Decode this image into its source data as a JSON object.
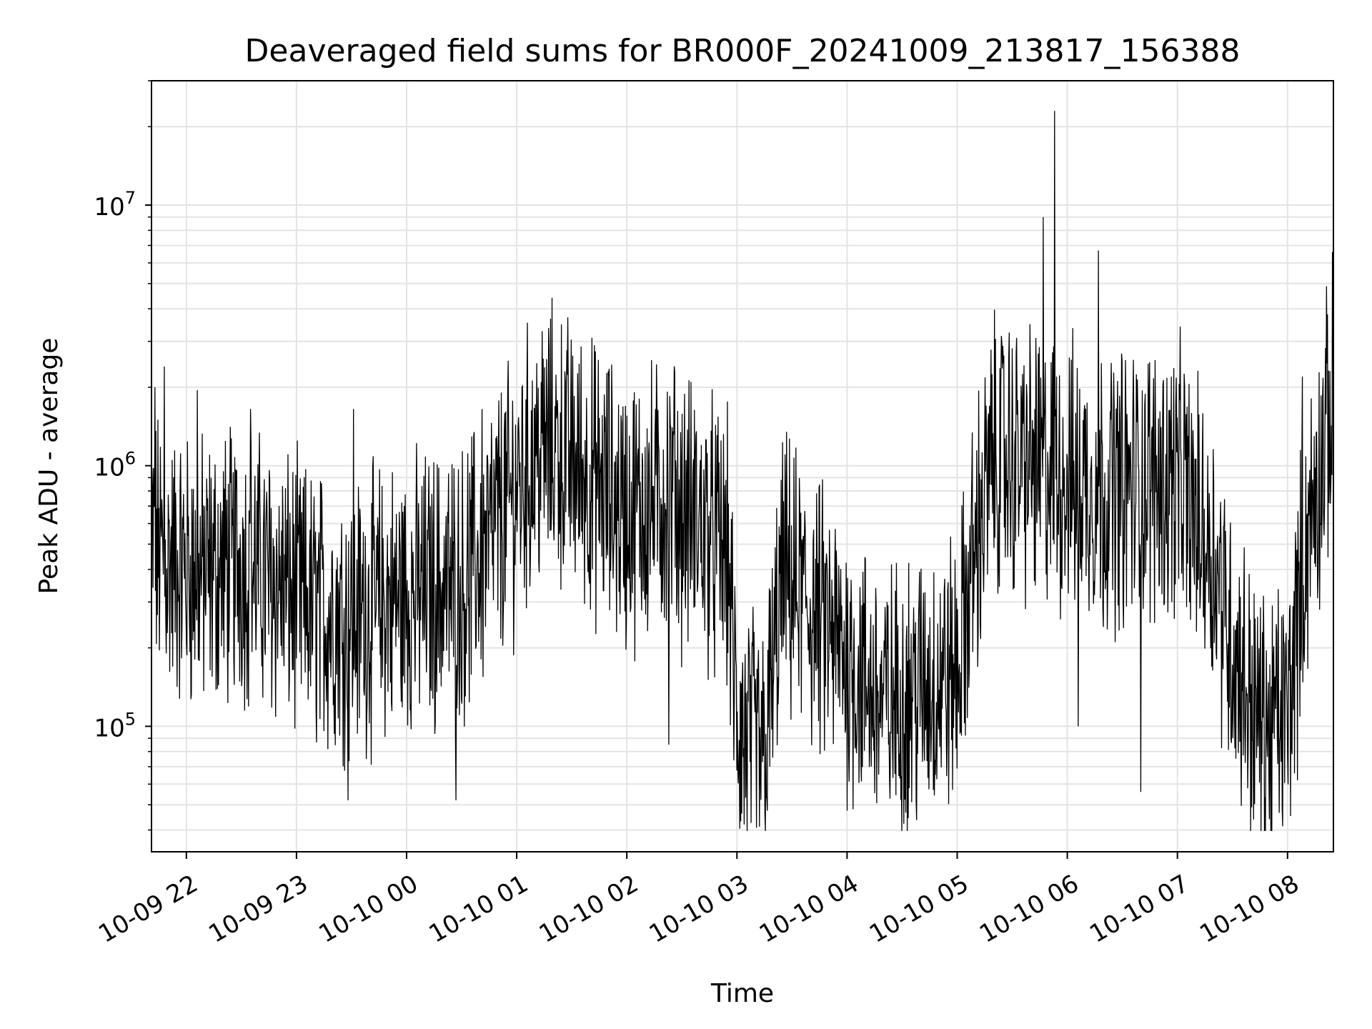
{
  "chart_data": {
    "type": "line",
    "title": "Deaveraged field sums for BR000F_20241009_213817_156388",
    "xlabel": "Time",
    "ylabel": "Peak ADU - average",
    "yscale": "log",
    "ylim": [
      33000,
      30000000
    ],
    "xlim": [
      "2024-10-09 21:41",
      "2024-10-10 08:25"
    ],
    "grid": true,
    "x_ticks": [
      {
        "time": "2024-10-09 22:00",
        "label": "10-09 22"
      },
      {
        "time": "2024-10-09 23:00",
        "label": "10-09 23"
      },
      {
        "time": "2024-10-10 00:00",
        "label": "10-10 00"
      },
      {
        "time": "2024-10-10 01:00",
        "label": "10-10 01"
      },
      {
        "time": "2024-10-10 02:00",
        "label": "10-10 02"
      },
      {
        "time": "2024-10-10 03:00",
        "label": "10-10 03"
      },
      {
        "time": "2024-10-10 04:00",
        "label": "10-10 04"
      },
      {
        "time": "2024-10-10 05:00",
        "label": "10-10 05"
      },
      {
        "time": "2024-10-10 06:00",
        "label": "10-10 06"
      },
      {
        "time": "2024-10-10 07:00",
        "label": "10-10 07"
      },
      {
        "time": "2024-10-10 08:00",
        "label": "10-10 08"
      }
    ],
    "y_ticks": [
      {
        "value": 100000,
        "base": "10",
        "exp": "5"
      },
      {
        "value": 1000000,
        "base": "10",
        "exp": "6"
      },
      {
        "value": 10000000,
        "base": "10",
        "exp": "7"
      }
    ],
    "series": [
      {
        "color": "#000000",
        "trend": [
          [
            "2024-10-09 21:41",
            500000
          ],
          [
            "2024-10-09 21:50",
            420000
          ],
          [
            "2024-10-09 22:10",
            380000
          ],
          [
            "2024-10-09 22:30",
            430000
          ],
          [
            "2024-10-09 22:50",
            350000
          ],
          [
            "2024-10-09 23:10",
            280000
          ],
          [
            "2024-10-09 23:30",
            260000
          ],
          [
            "2024-10-09 23:50",
            300000
          ],
          [
            "2024-10-10 00:10",
            330000
          ],
          [
            "2024-10-10 00:30",
            340000
          ],
          [
            "2024-10-10 00:50",
            600000
          ],
          [
            "2024-10-10 01:10",
            1100000
          ],
          [
            "2024-10-10 01:20",
            1200000
          ],
          [
            "2024-10-10 01:40",
            900000
          ],
          [
            "2024-10-10 02:00",
            650000
          ],
          [
            "2024-10-10 02:20",
            750000
          ],
          [
            "2024-10-10 02:40",
            600000
          ],
          [
            "2024-10-10 02:55",
            450000
          ],
          [
            "2024-10-10 03:00",
            100000
          ],
          [
            "2024-10-10 03:15",
            75000
          ],
          [
            "2024-10-10 03:25",
            380000
          ],
          [
            "2024-10-10 03:45",
            250000
          ],
          [
            "2024-10-10 04:00",
            180000
          ],
          [
            "2024-10-10 04:20",
            120000
          ],
          [
            "2024-10-10 04:40",
            140000
          ],
          [
            "2024-10-10 05:00",
            160000
          ],
          [
            "2024-10-10 05:10",
            500000
          ],
          [
            "2024-10-10 05:20",
            1100000
          ],
          [
            "2024-10-10 05:40",
            1000000
          ],
          [
            "2024-10-10 06:00",
            900000
          ],
          [
            "2024-10-10 06:20",
            800000
          ],
          [
            "2024-10-10 06:40",
            850000
          ],
          [
            "2024-10-10 07:00",
            900000
          ],
          [
            "2024-10-10 07:20",
            450000
          ],
          [
            "2024-10-10 07:30",
            200000
          ],
          [
            "2024-10-10 07:45",
            100000
          ],
          [
            "2024-10-10 08:00",
            110000
          ],
          [
            "2024-10-10 08:10",
            500000
          ],
          [
            "2024-10-10 08:25",
            1800000
          ]
        ],
        "spikes": [
          {
            "time": "2024-10-09 21:43",
            "value": 2000000
          },
          {
            "time": "2024-10-09 21:48",
            "value": 2400000
          },
          {
            "time": "2024-10-09 22:06",
            "value": 1950000
          },
          {
            "time": "2024-10-09 22:35",
            "value": 1650000
          },
          {
            "time": "2024-10-09 23:31",
            "value": 1650000
          },
          {
            "time": "2024-10-09 23:28",
            "value": 52000
          },
          {
            "time": "2024-10-10 00:27",
            "value": 52000
          },
          {
            "time": "2024-10-10 00:41",
            "value": 1650000
          },
          {
            "time": "2024-10-10 01:50",
            "value": 2200000
          },
          {
            "time": "2024-10-10 02:26",
            "value": 2300000
          },
          {
            "time": "2024-10-10 02:23",
            "value": 85000
          },
          {
            "time": "2024-10-10 03:04",
            "value": 42000
          },
          {
            "time": "2024-10-10 05:28",
            "value": 2600000
          },
          {
            "time": "2024-10-10 05:47",
            "value": 9000000
          },
          {
            "time": "2024-10-10 05:53",
            "value": 23000000
          },
          {
            "time": "2024-10-10 06:17",
            "value": 6700000
          },
          {
            "time": "2024-10-10 06:06",
            "value": 100000
          },
          {
            "time": "2024-10-10 06:40",
            "value": 56000
          },
          {
            "time": "2024-10-10 07:50",
            "value": 44000
          },
          {
            "time": "2024-10-10 08:08",
            "value": 2200000
          },
          {
            "time": "2024-10-10 08:25",
            "value": 3300000
          }
        ]
      }
    ]
  }
}
